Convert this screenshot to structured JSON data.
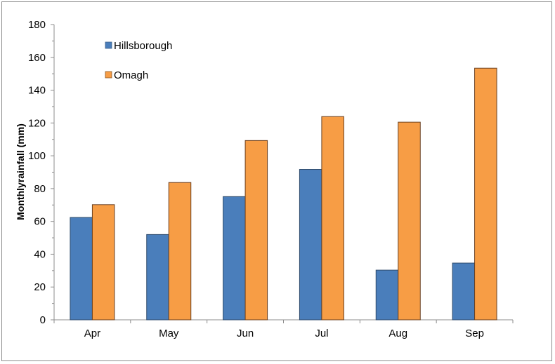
{
  "chart_data": {
    "type": "bar",
    "title": "",
    "xlabel": "",
    "ylabel": "Monthlyrainfall (mm)",
    "categories": [
      "Apr",
      "May",
      "Jun",
      "Jul",
      "Aug",
      "Sep"
    ],
    "series": [
      {
        "name": "Hillsborough",
        "color": "#4a7ebb",
        "values": [
          62.4,
          52.0,
          75.1,
          91.7,
          30.3,
          34.6
        ]
      },
      {
        "name": "Omagh",
        "color": "#f79d45",
        "values": [
          70.2,
          83.7,
          109.3,
          123.9,
          120.5,
          153.4
        ]
      }
    ],
    "ylim": [
      0,
      180
    ],
    "yticks": [
      "0",
      "20",
      "40",
      "60",
      "80",
      "100",
      "120",
      "140",
      "160",
      "180"
    ],
    "grid": false,
    "legend": "top-left"
  }
}
